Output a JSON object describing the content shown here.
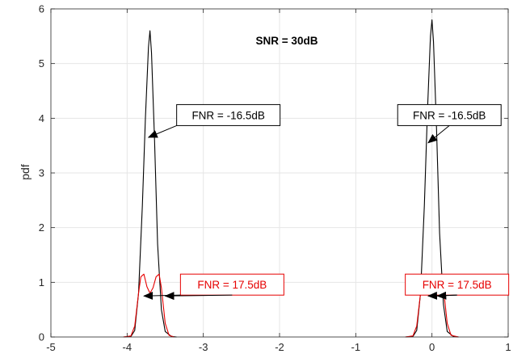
{
  "chart_data": {
    "type": "line",
    "title": "",
    "xlabel": "",
    "ylabel": "pdf",
    "xlim": [
      -5,
      1
    ],
    "ylim": [
      0,
      6
    ],
    "xticks": [
      "-5",
      "-4",
      "-3",
      "-2",
      "-1",
      "0",
      "1"
    ],
    "yticks": [
      "0",
      "1",
      "2",
      "3",
      "4",
      "5",
      "6"
    ],
    "grid": true,
    "inset_title": "SNR = 30dB",
    "colors": {
      "black": "#000000",
      "red": "#e60000",
      "grid": "#e6e6e6",
      "axis": "#262626"
    },
    "series": [
      {
        "color": "#000000",
        "x": [
          -4.05,
          -3.95,
          -3.9,
          -3.85,
          -3.8,
          -3.76,
          -3.72,
          -3.7,
          -3.68,
          -3.64,
          -3.6,
          -3.55,
          -3.5,
          -3.42,
          -3.35
        ],
        "y": [
          0,
          0.01,
          0.12,
          0.8,
          2.4,
          4.0,
          5.3,
          5.6,
          5.2,
          3.6,
          1.7,
          0.5,
          0.1,
          0.01,
          0
        ]
      },
      {
        "color": "#000000",
        "x": [
          -0.35,
          -0.25,
          -0.2,
          -0.15,
          -0.1,
          -0.06,
          -0.02,
          0.0,
          0.02,
          0.06,
          0.1,
          0.15,
          0.2,
          0.28,
          0.35
        ],
        "y": [
          0,
          0.01,
          0.12,
          0.8,
          2.4,
          4.1,
          5.5,
          5.8,
          5.4,
          3.8,
          1.9,
          0.6,
          0.1,
          0.01,
          0
        ]
      },
      {
        "color": "#e60000",
        "x": [
          -4.05,
          -3.95,
          -3.9,
          -3.85,
          -3.82,
          -3.78,
          -3.74,
          -3.7,
          -3.66,
          -3.62,
          -3.58,
          -3.55,
          -3.5,
          -3.45,
          -3.38
        ],
        "y": [
          0,
          0.02,
          0.2,
          0.8,
          1.1,
          1.15,
          0.92,
          0.8,
          0.9,
          1.1,
          1.15,
          0.9,
          0.25,
          0.03,
          0
        ]
      },
      {
        "color": "#e60000",
        "x": [
          -0.35,
          -0.25,
          -0.2,
          -0.15,
          -0.12,
          -0.08,
          -0.04,
          0.0,
          0.04,
          0.08,
          0.12,
          0.15,
          0.2,
          0.25,
          0.35
        ],
        "y": [
          0,
          0.02,
          0.2,
          0.8,
          1.1,
          1.15,
          0.92,
          0.8,
          0.9,
          1.1,
          1.15,
          0.9,
          0.25,
          0.03,
          0
        ]
      }
    ],
    "annotations": [
      {
        "text": "FNR = -16.5dB",
        "color": "#000000",
        "box_x": -3.35,
        "box_y": 4.25,
        "arrow_to": [
          -3.72,
          3.65
        ]
      },
      {
        "text": "FNR = -16.5dB",
        "color": "#000000",
        "box_x": -0.45,
        "box_y": 4.25,
        "arrow_to": [
          -0.05,
          3.55
        ]
      },
      {
        "text": "FNR = 17.5dB",
        "color": "#e60000",
        "box_x": -3.3,
        "box_y": 1.15,
        "arrow_to": [
          -3.78,
          0.75
        ]
      },
      {
        "text": "FNR = 17.5dB",
        "color": "#e60000",
        "box_x": -0.35,
        "box_y": 1.15,
        "arrow_to": [
          -0.05,
          0.75
        ]
      }
    ],
    "annotation_arrow_targets_extra": [
      {
        "from_box": 2,
        "to": [
          -3.5,
          0.75
        ]
      },
      {
        "from_box": 3,
        "to": [
          0.07,
          0.75
        ]
      }
    ]
  }
}
